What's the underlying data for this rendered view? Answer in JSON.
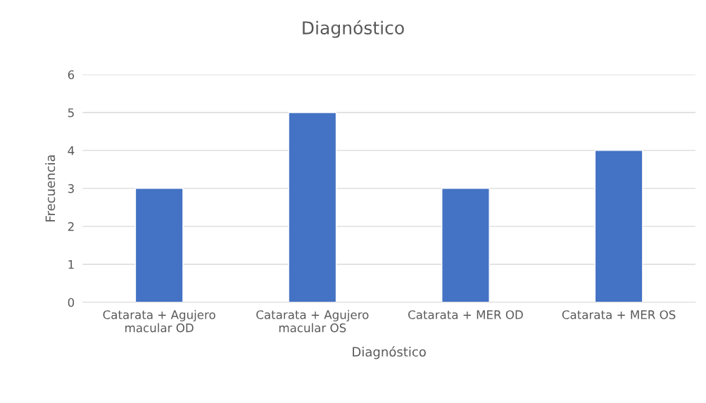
{
  "chart_data": {
    "type": "bar",
    "title": "Diagnóstico",
    "xlabel": "Diagnóstico",
    "ylabel": "Frecuencia",
    "categories": [
      "Catarata + Agujero\nmacular OD",
      "Catarata + Agujero\nmacular OS",
      "Catarata + MER OD",
      "Catarata + MER OS"
    ],
    "values": [
      3,
      5,
      3,
      4
    ],
    "color": "#4472c4",
    "ylim": [
      0,
      6
    ],
    "yticks": [
      0,
      1,
      2,
      3,
      4,
      5,
      6
    ],
    "grid": "y",
    "legend": false
  }
}
